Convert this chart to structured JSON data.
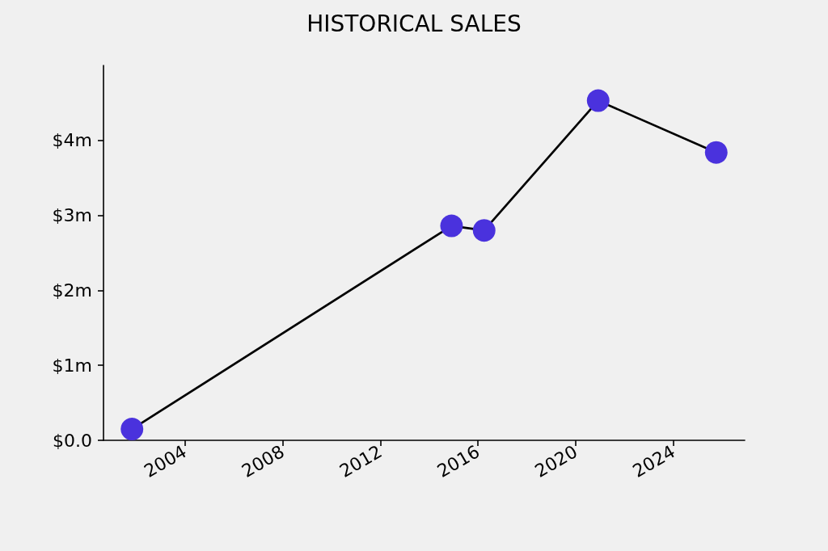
{
  "chart_data": {
    "type": "line",
    "title": "HISTORICAL SALES",
    "x": [
      "2001-11",
      "2014-12",
      "2016-04",
      "2020-12",
      "2025-10"
    ],
    "series": [
      {
        "color": "#4a32dd",
        "values": [
          0.15,
          2.86,
          2.8,
          4.53,
          3.84
        ]
      }
    ],
    "xlim": [
      "2000-09",
      "2026-12"
    ],
    "xticks": [
      "2004",
      "2008",
      "2012",
      "2016",
      "2020",
      "2024"
    ],
    "ylim": [
      0,
      5
    ],
    "yticks": [
      {
        "value": 0,
        "label": "$0.0"
      },
      {
        "value": 1,
        "label": "$1m"
      },
      {
        "value": 2,
        "label": "$2m"
      },
      {
        "value": 3,
        "label": "$3m"
      },
      {
        "value": 4,
        "label": "$4m"
      }
    ],
    "grid": false,
    "marker": "circle",
    "line_style": "solid"
  }
}
